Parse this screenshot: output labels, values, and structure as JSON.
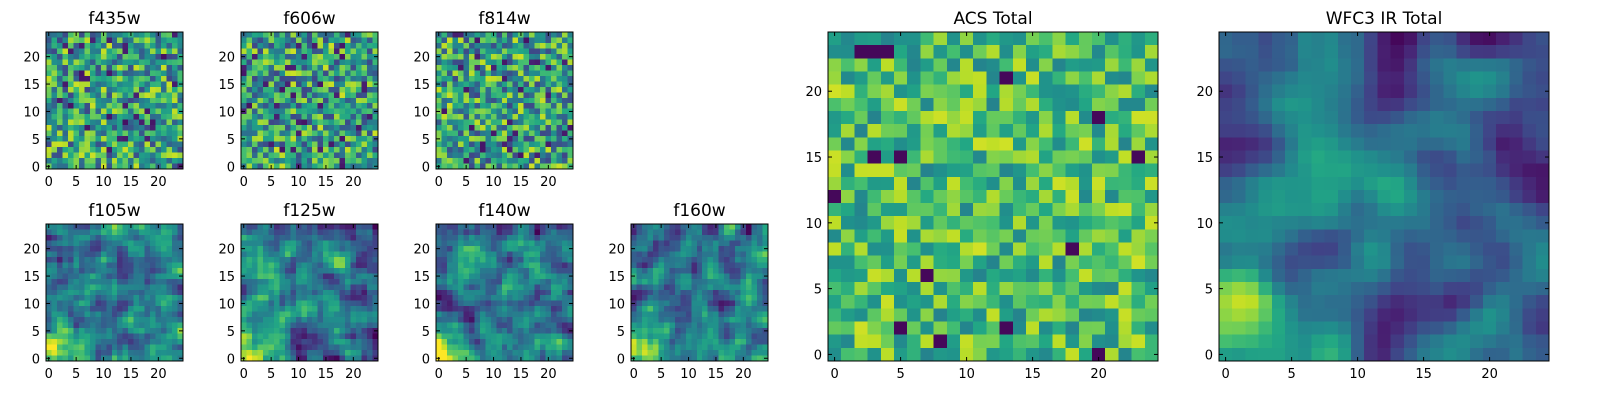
{
  "figure": {
    "colormap": "viridis",
    "axis_color": "#000000",
    "background": "#ffffff"
  },
  "chart_data": [
    {
      "id": "f435w",
      "type": "heatmap",
      "title": "f435w",
      "grid_size": [
        25,
        25
      ],
      "xlim": [
        0,
        25
      ],
      "ylim": [
        0,
        25
      ],
      "xticks": [
        0,
        5,
        10,
        15,
        20
      ],
      "yticks": [
        0,
        5,
        10,
        15,
        20
      ],
      "pattern": "noise",
      "seed": 11,
      "grid": false
    },
    {
      "id": "f606w",
      "type": "heatmap",
      "title": "f606w",
      "grid_size": [
        25,
        25
      ],
      "xlim": [
        0,
        25
      ],
      "ylim": [
        0,
        25
      ],
      "xticks": [
        0,
        5,
        10,
        15,
        20
      ],
      "yticks": [
        0,
        5,
        10,
        15,
        20
      ],
      "pattern": "noise",
      "seed": 23,
      "grid": false
    },
    {
      "id": "f814w",
      "type": "heatmap",
      "title": "f814w",
      "grid_size": [
        25,
        25
      ],
      "xlim": [
        0,
        25
      ],
      "ylim": [
        0,
        25
      ],
      "xticks": [
        0,
        5,
        10,
        15,
        20
      ],
      "yticks": [
        0,
        5,
        10,
        15,
        20
      ],
      "pattern": "noise",
      "seed": 37,
      "grid": false
    },
    {
      "id": "f105w",
      "type": "heatmap",
      "title": "f105w",
      "grid_size": [
        25,
        25
      ],
      "xlim": [
        0,
        25
      ],
      "ylim": [
        0,
        25
      ],
      "xticks": [
        0,
        5,
        10,
        15,
        20
      ],
      "yticks": [
        0,
        5,
        10,
        15,
        20
      ],
      "pattern": "ir",
      "seed": 41,
      "grid": false
    },
    {
      "id": "f125w",
      "type": "heatmap",
      "title": "f125w",
      "grid_size": [
        25,
        25
      ],
      "xlim": [
        0,
        25
      ],
      "ylim": [
        0,
        25
      ],
      "xticks": [
        0,
        5,
        10,
        15,
        20
      ],
      "yticks": [
        0,
        5,
        10,
        15,
        20
      ],
      "pattern": "ir",
      "seed": 53,
      "grid": false
    },
    {
      "id": "f140w",
      "type": "heatmap",
      "title": "f140w",
      "grid_size": [
        25,
        25
      ],
      "xlim": [
        0,
        25
      ],
      "ylim": [
        0,
        25
      ],
      "xticks": [
        0,
        5,
        10,
        15,
        20
      ],
      "yticks": [
        0,
        5,
        10,
        15,
        20
      ],
      "pattern": "ir",
      "seed": 67,
      "grid": false
    },
    {
      "id": "f160w",
      "type": "heatmap",
      "title": "f160w",
      "grid_size": [
        25,
        25
      ],
      "xlim": [
        0,
        25
      ],
      "ylim": [
        0,
        25
      ],
      "xticks": [
        0,
        5,
        10,
        15,
        20
      ],
      "yticks": [
        0,
        5,
        10,
        15,
        20
      ],
      "pattern": "ir",
      "seed": 79,
      "grid": false
    },
    {
      "id": "acs_total",
      "type": "heatmap",
      "title": "ACS Total",
      "grid_size": [
        25,
        25
      ],
      "xlim": [
        0,
        25
      ],
      "ylim": [
        0,
        25
      ],
      "xticks": [
        0,
        5,
        10,
        15,
        20
      ],
      "yticks": [
        0,
        5,
        10,
        15,
        20
      ],
      "pattern": "acs",
      "seed": 97,
      "grid": false
    },
    {
      "id": "wfc3_ir_total",
      "type": "heatmap",
      "title": "WFC3 IR Total",
      "grid_size": [
        25,
        25
      ],
      "xlim": [
        0,
        25
      ],
      "ylim": [
        0,
        25
      ],
      "xticks": [
        0,
        5,
        10,
        15,
        20
      ],
      "yticks": [
        0,
        5,
        10,
        15,
        20
      ],
      "pattern": "irtotal",
      "seed": 101,
      "grid": false
    }
  ]
}
